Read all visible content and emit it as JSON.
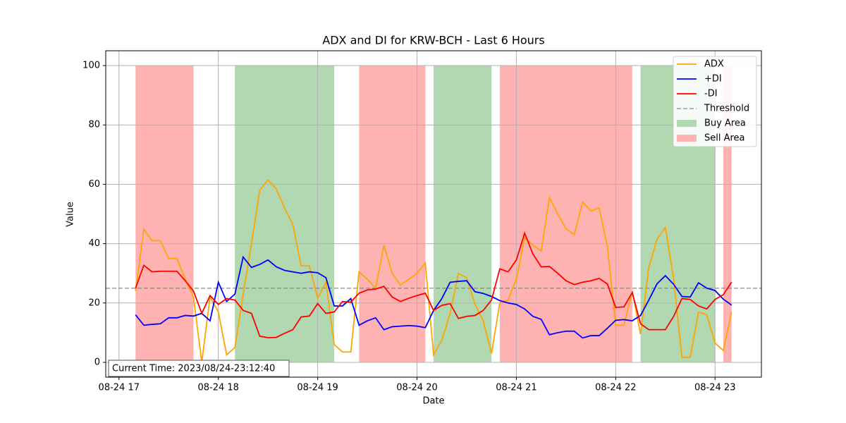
{
  "chart_data": {
    "type": "line",
    "title": "ADX and DI for KRW-BCH - Last 6 Hours",
    "x_label": "Date",
    "y_label": "Value",
    "annotation": "Current Time: 2023/08/24-23:12:40",
    "x": [
      "08-24 17:10",
      "08-24 17:15",
      "08-24 17:20",
      "08-24 17:25",
      "08-24 17:30",
      "08-24 17:35",
      "08-24 17:40",
      "08-24 17:45",
      "08-24 17:50",
      "08-24 17:55",
      "08-24 18:00",
      "08-24 18:05",
      "08-24 18:10",
      "08-24 18:15",
      "08-24 18:20",
      "08-24 18:25",
      "08-24 18:30",
      "08-24 18:35",
      "08-24 18:40",
      "08-24 18:45",
      "08-24 18:50",
      "08-24 18:55",
      "08-24 19:00",
      "08-24 19:05",
      "08-24 19:10",
      "08-24 19:15",
      "08-24 19:20",
      "08-24 19:25",
      "08-24 19:30",
      "08-24 19:35",
      "08-24 19:40",
      "08-24 19:45",
      "08-24 19:50",
      "08-24 19:55",
      "08-24 20:00",
      "08-24 20:05",
      "08-24 20:10",
      "08-24 20:15",
      "08-24 20:20",
      "08-24 20:25",
      "08-24 20:30",
      "08-24 20:35",
      "08-24 20:40",
      "08-24 20:45",
      "08-24 20:50",
      "08-24 20:55",
      "08-24 21:00",
      "08-24 21:05",
      "08-24 21:10",
      "08-24 21:15",
      "08-24 21:20",
      "08-24 21:25",
      "08-24 21:30",
      "08-24 21:35",
      "08-24 21:40",
      "08-24 21:45",
      "08-24 21:50",
      "08-24 21:55",
      "08-24 22:00",
      "08-24 22:05",
      "08-24 22:10",
      "08-24 22:15",
      "08-24 22:20",
      "08-24 22:25",
      "08-24 22:30",
      "08-24 22:35",
      "08-24 22:40",
      "08-24 22:45",
      "08-24 22:50",
      "08-24 22:55",
      "08-24 23:00",
      "08-24 23:05",
      "08-24 23:10"
    ],
    "series": [
      {
        "name": "ADX",
        "color": "#ffa500",
        "values": [
          24,
          44.8,
          41,
          41,
          35,
          35,
          28,
          22,
          0,
          22,
          17,
          2.5,
          5,
          23,
          40,
          58,
          61.5,
          58.5,
          52,
          46.5,
          32.5,
          32.5,
          21.5,
          27,
          6,
          3.5,
          3.5,
          30.5,
          28,
          25,
          39.5,
          30,
          26,
          28,
          30,
          33.5,
          2.5,
          7.5,
          16.5,
          30,
          28.5,
          19.5,
          14,
          3,
          20,
          21,
          28,
          42,
          39.5,
          37.5,
          55.5,
          50,
          45,
          43,
          54,
          51,
          52,
          39,
          12.5,
          12.5,
          24,
          9.5,
          32,
          41.5,
          45.5,
          28,
          1.7,
          1.7,
          17,
          16,
          6.5,
          4,
          17
        ]
      },
      {
        "name": "+DI",
        "color": "#0000ff",
        "values": [
          16,
          12.5,
          12.8,
          13,
          15,
          15,
          15.8,
          15.6,
          16.5,
          14,
          27,
          20.5,
          23,
          35.5,
          32,
          33,
          34.5,
          32.2,
          31,
          30.5,
          30,
          30.5,
          30.2,
          28.5,
          19,
          19,
          21.5,
          12.5,
          14,
          15,
          11,
          12,
          12.2,
          12.4,
          12.2,
          11.7,
          17.5,
          21.5,
          27,
          27.3,
          27.5,
          23.8,
          23.2,
          22.2,
          20.8,
          20,
          19.5,
          18,
          15.5,
          14.5,
          9.3,
          10,
          10.5,
          10.5,
          8.2,
          9,
          9,
          11.5,
          14.2,
          14.4,
          14,
          15.8,
          21,
          26.5,
          29.2,
          26.3,
          22.2,
          22,
          26.8,
          25,
          24.2,
          21.3,
          19.3
        ]
      },
      {
        "name": "-DI",
        "color": "#ff0000",
        "values": [
          25,
          32.7,
          30.5,
          30.7,
          30.7,
          30.7,
          27.5,
          24,
          16.5,
          22.5,
          19.5,
          21.5,
          21,
          17.5,
          16.5,
          8.8,
          8.3,
          8.4,
          9.8,
          11,
          15.3,
          15.6,
          19.8,
          16.5,
          17,
          20.5,
          20.3,
          23.3,
          24.4,
          24.7,
          25.6,
          22,
          20.5,
          21.6,
          22.5,
          23.3,
          17.5,
          19.2,
          19.8,
          14.8,
          15.5,
          15.8,
          17.5,
          21,
          31.5,
          30.5,
          34.5,
          43.5,
          36.5,
          32.2,
          32.3,
          30,
          27.5,
          26.2,
          27,
          27.5,
          28.3,
          26.4,
          18.5,
          18.7,
          23.5,
          13,
          11,
          11,
          11,
          15.5,
          21.5,
          21.2,
          19,
          18,
          21.2,
          22.8,
          27
        ]
      }
    ],
    "threshold": {
      "name": "Threshold",
      "value": 25,
      "color": "#808080"
    },
    "area_ylim": [
      0,
      100
    ],
    "areas": [
      {
        "name": "Buy Area",
        "color": "#b2d8b2",
        "ranges": [
          [
            "08-24 18:10",
            "08-24 19:10"
          ],
          [
            "08-24 20:10",
            "08-24 20:45"
          ],
          [
            "08-24 22:15",
            "08-24 23:00"
          ]
        ]
      },
      {
        "name": "Sell Area",
        "color": "#ffb2b2",
        "ranges": [
          [
            "08-24 17:10",
            "08-24 17:45"
          ],
          [
            "08-24 19:25",
            "08-24 20:05"
          ],
          [
            "08-24 20:50",
            "08-24 22:10"
          ],
          [
            "08-24 23:05",
            "08-24 23:10"
          ]
        ]
      }
    ],
    "xlim": [
      "08-24 16:52",
      "08-24 23:28"
    ],
    "xticks": [
      "08-24 17",
      "08-24 18",
      "08-24 19",
      "08-24 20",
      "08-24 21",
      "08-24 22",
      "08-24 23"
    ],
    "ylim": [
      -5,
      105
    ],
    "yticks": [
      0,
      20,
      40,
      60,
      80,
      100
    ],
    "grid": true,
    "legend": "upper right"
  }
}
